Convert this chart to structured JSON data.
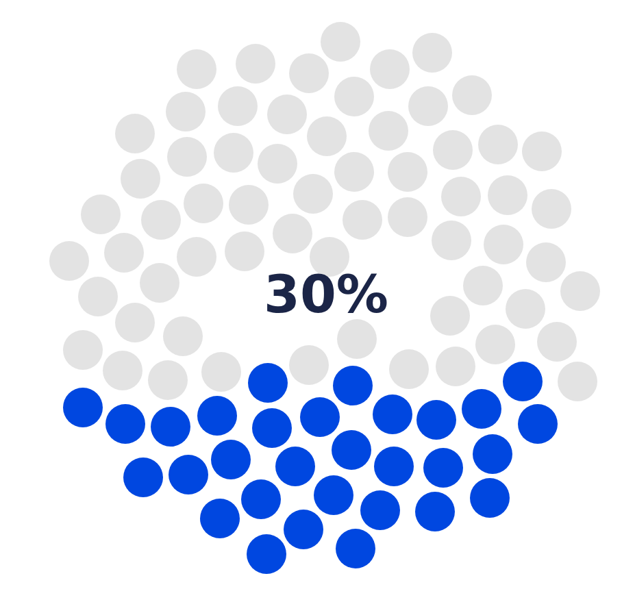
{
  "chart_data": {
    "type": "other",
    "values": [
      30
    ],
    "value_labels": [
      "30%"
    ],
    "color": "#0047e0"
  }
}
